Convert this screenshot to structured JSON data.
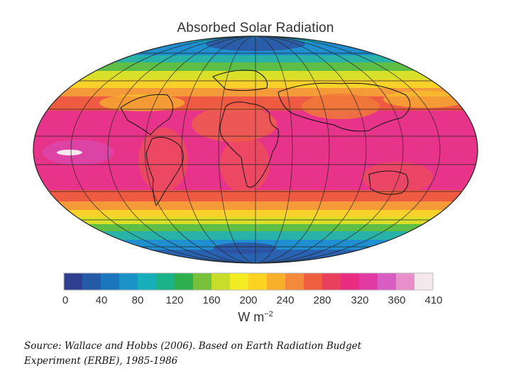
{
  "title": "Absorbed Solar Radiation",
  "colorbar": {
    "ticks": [
      "0",
      "40",
      "80",
      "120",
      "160",
      "200",
      "240",
      "280",
      "320",
      "360",
      "410"
    ],
    "units": "W m",
    "units_exponent": "−2",
    "colors": [
      "#2e3f8f",
      "#245aa6",
      "#1b76bd",
      "#1b93c9",
      "#16aeb8",
      "#1bb28a",
      "#2fae4e",
      "#76c03c",
      "#c8dc2c",
      "#f4ec22",
      "#fbd320",
      "#f8b02a",
      "#f38a3b",
      "#ef5f3f",
      "#ea3f5d",
      "#e82c7f",
      "#e23aa2",
      "#d75ec0",
      "#e88fcb",
      "#f5e8ec"
    ]
  },
  "source": {
    "line1": "Source: Wallace and Hobbs (2006). Based on Earth Radiation Budget",
    "line2": "Experiment (ERBE), 1985-1986"
  }
}
